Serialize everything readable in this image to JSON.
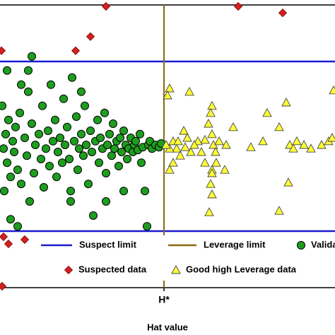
{
  "chart_data": {
    "type": "scatter",
    "xlabel": "Hat value",
    "xlim": [
      0,
      0.474
    ],
    "ylim": [
      -5,
      5
    ],
    "xticks": [
      {
        "value": 0.232,
        "label": "H*"
      }
    ],
    "hlines": {
      "name": "Suspect limit",
      "color": "#1a1ad0",
      "values": [
        3,
        -3
      ]
    },
    "vline": {
      "name": "Leverage limit",
      "color": "#8b6914",
      "value": 0.232
    },
    "series": [
      {
        "name": "Validated data",
        "color": "#1e9e1e",
        "marker": "circle",
        "x": [
          0.005,
          0.008,
          0.01,
          0.012,
          0.015,
          0.003,
          0.006,
          0.018,
          0.02,
          0.022,
          0.025,
          0.028,
          0.03,
          0.035,
          0.038,
          0.04,
          0.04,
          0.042,
          0.045,
          0.048,
          0.05,
          0.055,
          0.058,
          0.06,
          0.062,
          0.065,
          0.068,
          0.07,
          0.072,
          0.075,
          0.078,
          0.08,
          0.082,
          0.085,
          0.088,
          0.09,
          0.092,
          0.095,
          0.098,
          0.1,
          0.102,
          0.105,
          0.108,
          0.11,
          0.112,
          0.115,
          0.118,
          0.12,
          0.122,
          0.125,
          0.128,
          0.13,
          0.132,
          0.135,
          0.138,
          0.14,
          0.142,
          0.145,
          0.148,
          0.15,
          0.152,
          0.155,
          0.158,
          0.16,
          0.162,
          0.165,
          0.168,
          0.17,
          0.172,
          0.175,
          0.178,
          0.18,
          0.182,
          0.185,
          0.188,
          0.19,
          0.192,
          0.195,
          0.198,
          0.2,
          0.202,
          0.205,
          0.208,
          0.21,
          0.212,
          0.215,
          0.22,
          0.225,
          0.228,
          0.1,
          0.045,
          0.015,
          0.025,
          0.01,
          0.03,
          0.115,
          0.175,
          0.15
        ],
        "y": [
          -0.08,
          0.43,
          -0.58,
          0.93,
          -1.08,
          1.43,
          -1.58,
          0.18,
          -0.2,
          0.68,
          -0.83,
          1.18,
          -1.33,
          0.3,
          -0.33,
          2.68,
          1.93,
          -1.95,
          0.8,
          -0.95,
          0.05,
          0.43,
          -0.45,
          1.43,
          -1.45,
          -0.08,
          0.55,
          -0.7,
          2.18,
          0.18,
          0.93,
          -1.08,
          -0.2,
          0.3,
          -0.58,
          1.68,
          0.05,
          0.68,
          -0.45,
          -1.58,
          2.43,
          0.18,
          1.05,
          -0.83,
          -0.08,
          0.43,
          -0.33,
          1.43,
          0.05,
          -1.33,
          0.55,
          -0.2,
          -2.45,
          0.18,
          0.93,
          -0.58,
          0.3,
          -0.08,
          1.18,
          -0.95,
          0.05,
          0.43,
          -0.33,
          0.8,
          -0.08,
          0.18,
          -0.7,
          0.3,
          -0.2,
          0.55,
          0.05,
          -0.45,
          -0.08,
          0.3,
          -0.2,
          0.05,
          0.18,
          -0.13,
          0.43,
          -0.58,
          -0.03,
          -1.58,
          -2.83,
          0.05,
          0.18,
          -0.08,
          0.05,
          -0.03,
          0.1,
          -1.95,
          3.18,
          -2.58,
          -2.83,
          2.68,
          2.18,
          1.93,
          -1.58,
          -1.95
        ]
      },
      {
        "name": "Suspected data",
        "color": "#d42020",
        "marker": "diamond",
        "x": [
          0.15,
          0.337,
          0.4,
          0.128,
          0.107,
          0.002,
          0.012,
          0.035,
          0.005,
          0.003
        ],
        "y": [
          4.95,
          4.95,
          4.72,
          3.88,
          3.38,
          3.38,
          -3.45,
          -3.3,
          -3.2,
          -4.95
        ]
      },
      {
        "name": "Good high Leverage data",
        "color": "#ffff33",
        "marker": "triangle",
        "x": [
          0.24,
          0.237,
          0.268,
          0.3,
          0.298,
          0.295,
          0.3,
          0.302,
          0.305,
          0.3,
          0.298,
          0.3,
          0.306,
          0.31,
          0.29,
          0.28,
          0.26,
          0.265,
          0.25,
          0.245,
          0.24,
          0.255,
          0.27,
          0.275,
          0.285,
          0.32,
          0.33,
          0.355,
          0.372,
          0.378,
          0.395,
          0.405,
          0.41,
          0.415,
          0.42,
          0.408,
          0.395,
          0.43,
          0.44,
          0.455,
          0.465,
          0.47,
          0.472,
          0.24,
          0.235,
          0.245,
          0.252,
          0.262,
          0.318,
          0.3,
          0.29,
          0.296
        ],
        "y": [
          2.05,
          1.8,
          1.93,
          1.43,
          1.18,
          0.8,
          0.43,
          0.05,
          -0.2,
          -0.83,
          -1.33,
          -1.7,
          -0.58,
          0.18,
          0.23,
          0.18,
          0.55,
          0.3,
          -0.08,
          -0.58,
          -0.83,
          -0.33,
          -0.2,
          0.05,
          -0.2,
          0.05,
          0.68,
          -0.03,
          0.18,
          1.18,
          0.68,
          1.55,
          0.05,
          -0.08,
          0.18,
          -1.28,
          -2.28,
          0.05,
          -0.08,
          0.05,
          0.18,
          0.3,
          1.98,
          -0.08,
          0.05,
          0.18,
          0.18,
          -0.03,
          -0.83,
          -0.95,
          -0.58,
          -2.33
        ]
      }
    ]
  }
}
